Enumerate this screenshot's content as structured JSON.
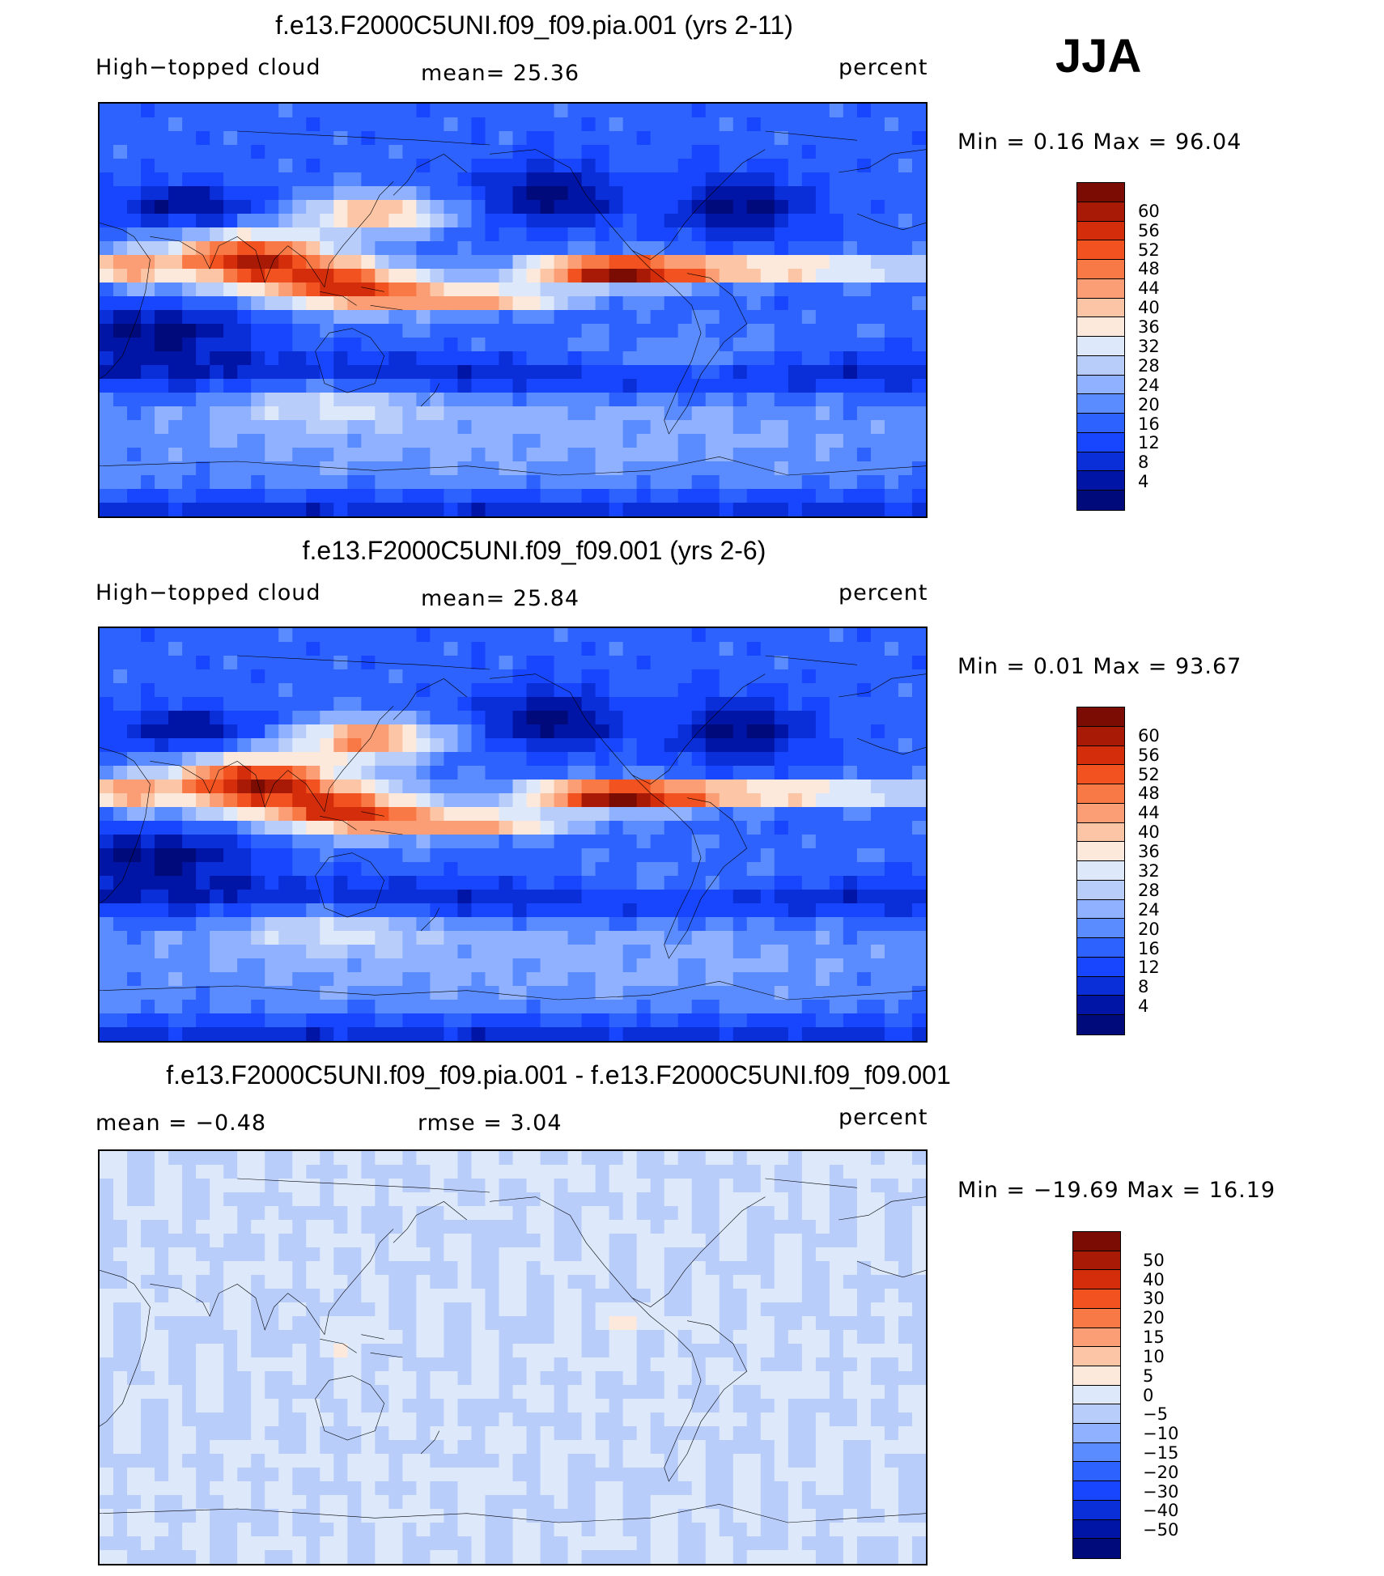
{
  "season": "JJA",
  "colors": {
    "abs_scale": [
      "#000a7a",
      "#0015a6",
      "#0a2ed8",
      "#1846ff",
      "#2e62ff",
      "#5a8bff",
      "#8fb1ff",
      "#b8cdfa",
      "#dde9fb",
      "#fde8dc",
      "#fcc5a5",
      "#fb9d75",
      "#f87945",
      "#f1521f",
      "#d42d0c",
      "#a81a06",
      "#7a0c03"
    ],
    "diff_scale": [
      "#000a7a",
      "#0015a6",
      "#0a2ed8",
      "#1846ff",
      "#2e62ff",
      "#5a8bff",
      "#8fb1ff",
      "#b8cdfa",
      "#dde9fb",
      "#fde8dc",
      "#fcc5a5",
      "#fb9d75",
      "#f87945",
      "#f1521f",
      "#d42d0c",
      "#a81a06",
      "#7a0c03"
    ],
    "coast": "#000000"
  },
  "chart_data": [
    {
      "type": "heatmap",
      "title": "f.e13.F2000C5UNI.f09_f09.pia.001 (yrs 2-11)",
      "variable": "High−topped  cloud",
      "stat_left": "mean=   25.36",
      "units": "percent",
      "minmax": "Min  =     0.16  Max  =    96.04",
      "min": 0.16,
      "max": 96.04,
      "mean": 25.36,
      "colorbar_labels": [
        "60",
        "56",
        "52",
        "48",
        "44",
        "40",
        "36",
        "32",
        "28",
        "24",
        "20",
        "16",
        "12",
        "8",
        "4"
      ]
    },
    {
      "type": "heatmap",
      "title": "f.e13.F2000C5UNI.f09_f09.001 (yrs 2-6)",
      "variable": "High−topped  cloud",
      "stat_left": "mean=   25.84",
      "units": "percent",
      "minmax": "Min  =     0.01  Max  =    93.67",
      "min": 0.01,
      "max": 93.67,
      "mean": 25.84,
      "colorbar_labels": [
        "60",
        "56",
        "52",
        "48",
        "44",
        "40",
        "36",
        "32",
        "28",
        "24",
        "20",
        "16",
        "12",
        "8",
        "4"
      ]
    },
    {
      "type": "heatmap",
      "title": "f.e13.F2000C5UNI.f09_f09.pia.001 - f.e13.F2000C5UNI.f09_f09.001",
      "stat_left": "mean  =    −0.48",
      "stat_mid": "rmse  =      3.04",
      "units": "percent",
      "minmax": "Min  = −19.69  Max  =    16.19",
      "min": -19.69,
      "max": 16.19,
      "mean": -0.48,
      "rmse": 3.04,
      "colorbar_labels": [
        "50",
        "40",
        "30",
        "20",
        "15",
        "10",
        "5",
        "0",
        "−5",
        "−10",
        "−15",
        "−20",
        "−30",
        "−40",
        "−50"
      ]
    }
  ]
}
